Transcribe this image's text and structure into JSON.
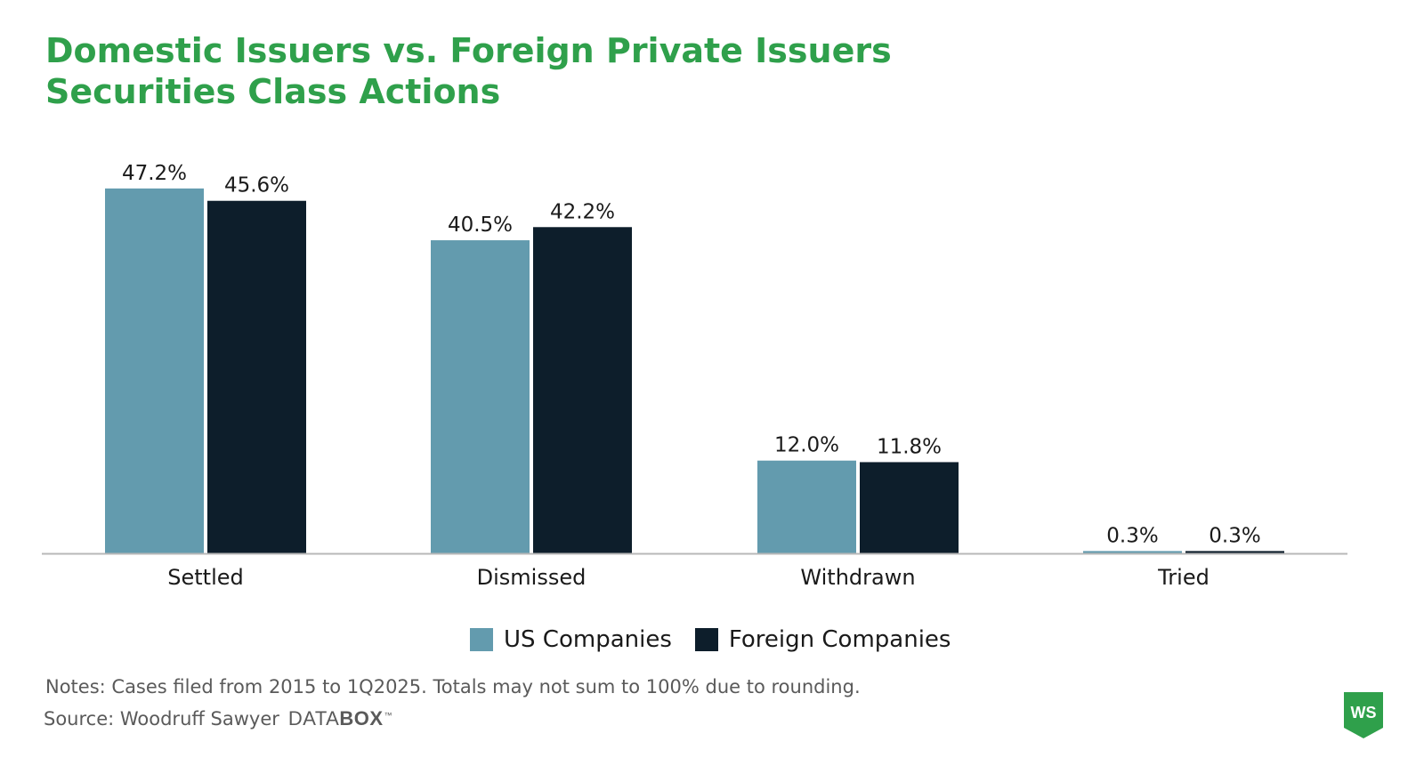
{
  "title_lines": [
    "Domestic Issuers vs. Foreign Private Issuers",
    "Securities Class Actions"
  ],
  "notes": "Notes: Cases filed from 2015 to 1Q2025. Totals may not sum to 100% due to rounding.",
  "source": {
    "label": "Source: Woodruff Sawyer",
    "brand_light": "DATA",
    "brand_bold": "BOX",
    "trademark": "™"
  },
  "logo": {
    "text": "WS",
    "color": "#2fa04b"
  },
  "colors": {
    "us": "#639bae",
    "foreign": "#0d1e2b",
    "title": "#2fa04b"
  },
  "chart_data": {
    "type": "bar",
    "categories": [
      "Settled",
      "Dismissed",
      "Withdrawn",
      "Tried"
    ],
    "series": [
      {
        "name": "US Companies",
        "color": "#639bae",
        "values": [
          47.2,
          40.5,
          12.0,
          0.3
        ],
        "labels": [
          "47.2%",
          "40.5%",
          "12.0%",
          "0.3%"
        ]
      },
      {
        "name": "Foreign Companies",
        "color": "#0d1e2b",
        "values": [
          45.6,
          42.2,
          11.8,
          0.3
        ],
        "labels": [
          "45.6%",
          "42.2%",
          "11.8%",
          "0.3%"
        ]
      }
    ],
    "unit": "%",
    "ylim": [
      0,
      50
    ],
    "grid": false,
    "legend_position": "bottom-center"
  }
}
